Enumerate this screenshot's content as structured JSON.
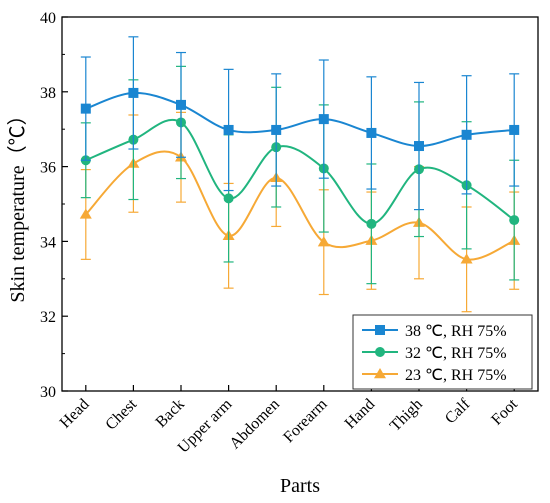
{
  "chart_data": {
    "type": "line",
    "categories": [
      "Head",
      "Chest",
      "Back",
      "Upper arm",
      "Abdomen",
      "Forearm",
      "Hand",
      "Thigh",
      "Calf",
      "Foot"
    ],
    "xlabel": "Parts",
    "ylabel": "Skin temperature（℃）",
    "ylim": [
      30,
      40
    ],
    "yticks": [
      30,
      32,
      34,
      36,
      38,
      40
    ],
    "grid": false,
    "legend_position": "bottom-right",
    "series": [
      {
        "name": "38 ℃, RH 75%",
        "color": "#1a86d1",
        "marker": "square",
        "values": [
          37.55,
          37.97,
          37.65,
          36.98,
          36.98,
          37.27,
          36.9,
          36.55,
          36.85,
          36.98
        ],
        "errors": [
          1.38,
          1.5,
          1.4,
          1.62,
          1.5,
          1.58,
          1.5,
          1.7,
          1.58,
          1.5
        ]
      },
      {
        "name": "32 ℃, RH 75%",
        "color": "#21b57f",
        "marker": "circle",
        "values": [
          36.17,
          36.72,
          37.18,
          35.15,
          36.52,
          35.95,
          34.47,
          35.93,
          35.5,
          34.57
        ],
        "errors": [
          1.0,
          1.6,
          1.5,
          1.7,
          1.6,
          1.7,
          1.6,
          1.8,
          1.7,
          1.6
        ]
      },
      {
        "name": "23 ℃, RH 75%",
        "color": "#f6a936",
        "marker": "triangle",
        "values": [
          34.72,
          36.08,
          36.25,
          34.15,
          35.7,
          33.98,
          34.02,
          34.5,
          33.52,
          34.02
        ],
        "errors": [
          1.2,
          1.3,
          1.2,
          1.4,
          1.3,
          1.4,
          1.3,
          1.5,
          1.4,
          1.3
        ]
      }
    ]
  }
}
